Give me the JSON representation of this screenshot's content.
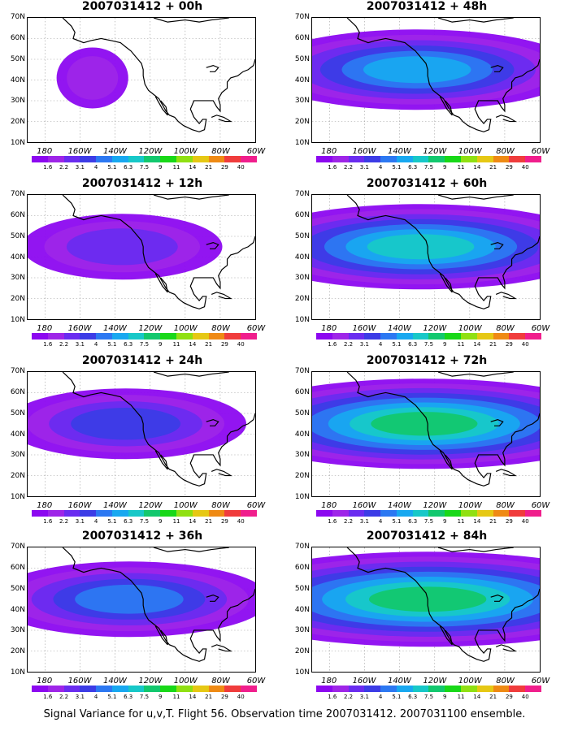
{
  "colorbar": {
    "labels": [
      "1.6",
      "2.2",
      "3.1",
      "4",
      "5.1",
      "6.3",
      "7.5",
      "9",
      "11",
      "14",
      "21",
      "29",
      "40"
    ],
    "colors": [
      "#8c08f0",
      "#9e25e8",
      "#6a2cf0",
      "#3c3ce6",
      "#2c78f2",
      "#18a8f0",
      "#17c8c8",
      "#12c86e",
      "#18d818",
      "#90e012",
      "#e6c814",
      "#ef8a14",
      "#f03c3c",
      "#f01e8c"
    ]
  },
  "lat_labels": [
    "70N",
    "60N",
    "50N",
    "40N",
    "30N",
    "20N",
    "10N"
  ],
  "lon_labels": [
    "180",
    "160W",
    "140W",
    "120W",
    "100W",
    "80W",
    "60W"
  ],
  "panels": [
    {
      "title": "2007031412 + 00h",
      "intensity": 0
    },
    {
      "title": "2007031412 + 48h",
      "intensity": 4
    },
    {
      "title": "2007031412 + 12h",
      "intensity": 1
    },
    {
      "title": "2007031412 + 60h",
      "intensity": 5
    },
    {
      "title": "2007031412 + 24h",
      "intensity": 2
    },
    {
      "title": "2007031412 + 72h",
      "intensity": 6
    },
    {
      "title": "2007031412 + 36h",
      "intensity": 3
    },
    {
      "title": "2007031412 + 84h",
      "intensity": 7
    }
  ],
  "footer": "Signal Variance for u,v,T. Flight 56. Observation time 2007031412. 2007031100 ensemble."
}
